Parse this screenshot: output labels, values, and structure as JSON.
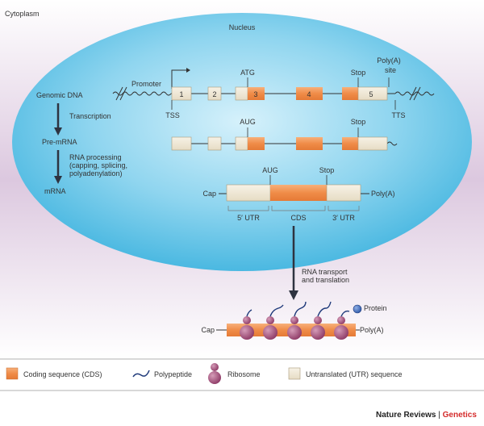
{
  "labels": {
    "cytoplasm": "Cytoplasm",
    "nucleus": "Nucleus",
    "genomic_dna": "Genomic DNA",
    "promoter": "Promoter",
    "tss": "TSS",
    "tts": "TTS",
    "atg": "ATG",
    "stop_1": "Stop",
    "polya_site_1": "Poly(A)",
    "polya_site_2": "site",
    "transcription": "Transcription",
    "pre_mrna": "Pre-mRNA",
    "aug_1": "AUG",
    "stop_2": "Stop",
    "rna_processing_1": "RNA processing",
    "rna_processing_2": "(capping, splicing,",
    "rna_processing_3": "polyadenylation)",
    "mrna": "mRNA",
    "aug_2": "AUG",
    "stop_3": "Stop",
    "cap_1": "Cap",
    "polya_1": "Poly(A)",
    "utr5": "5′ UTR",
    "cds": "CDS",
    "utr3": "3′ UTR",
    "rna_transport_1": "RNA transport",
    "rna_transport_2": "and translation",
    "protein": "Protein",
    "cap_2": "Cap",
    "polya_2": "Poly(A)"
  },
  "exons": [
    "1",
    "2",
    "3",
    "4",
    "5"
  ],
  "legend": {
    "cds": "Coding sequence (CDS)",
    "polypeptide": "Polypeptide",
    "ribosome": "Ribosome",
    "utr": "Untranslated (UTR) sequence"
  },
  "credit": {
    "journal": "Nature Reviews",
    "separator": " | ",
    "section": "Genetics"
  },
  "colors": {
    "cds_orange": "#f29a5c",
    "utr_beige": "#efe8d6",
    "nucleus_blue": "#58bfe3",
    "cytoplasm_lilac": "#dcc8df",
    "ribosome_purple": "#a24c78",
    "polypeptide_navy": "#1f3a7a",
    "protein_blue": "#3a68b8",
    "accent_red": "#d42b2b"
  }
}
